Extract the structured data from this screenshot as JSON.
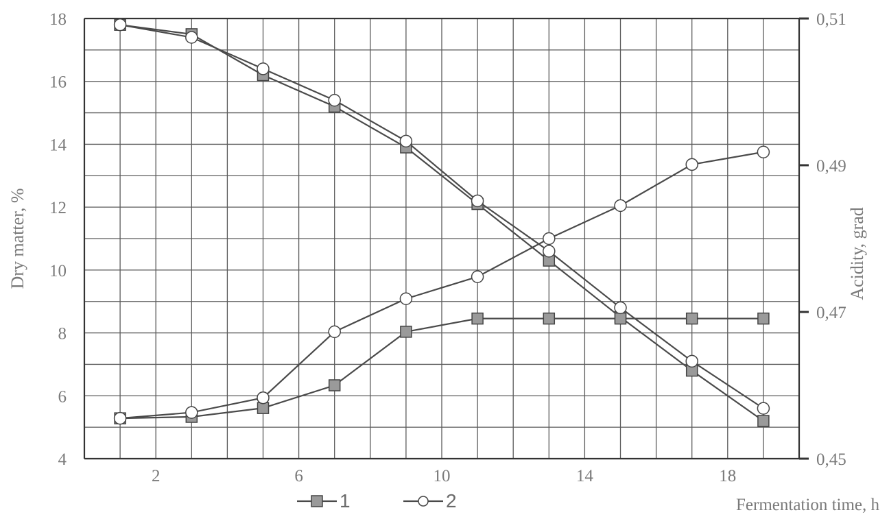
{
  "colors": {
    "line": "#4a4a4a",
    "grid": "#5a5a5a",
    "square_fill": "#9a9a9a",
    "circle_fill": "#ffffff",
    "text": "#7a7a7a"
  },
  "chart_data": {
    "type": "line",
    "title": "",
    "xlabel": "Fermentation time, h",
    "ylabel_left": "Dry matter, %",
    "ylabel_right": "Acidity, grad",
    "xlim": [
      0,
      20
    ],
    "ylim_left": [
      4,
      18
    ],
    "ylim_right": [
      0.45,
      0.51
    ],
    "x_ticks": [
      2,
      6,
      10,
      14,
      18
    ],
    "y_ticks_left": [
      4,
      6,
      8,
      10,
      12,
      14,
      16,
      18
    ],
    "y_ticks_right": [
      "0,45",
      "0,47",
      "0,49",
      "0,51"
    ],
    "grid": true,
    "legend_position": "bottom-center",
    "x": [
      1,
      3,
      5,
      7,
      9,
      11,
      13,
      15,
      17,
      19
    ],
    "series": [
      {
        "name": "1",
        "marker": "square",
        "dry_matter": [
          17.8,
          17.5,
          16.2,
          15.2,
          13.9,
          12.1,
          10.3,
          8.5,
          6.8,
          5.2
        ],
        "acidity": [
          0.4555,
          0.4557,
          0.4569,
          0.46,
          0.4673,
          0.4691,
          0.4691,
          0.4691,
          0.4691,
          0.4691
        ]
      },
      {
        "name": "2",
        "marker": "circle",
        "dry_matter": [
          17.8,
          17.4,
          16.4,
          15.4,
          14.1,
          12.2,
          10.6,
          8.8,
          7.1,
          5.6
        ],
        "acidity": [
          0.4555,
          0.4563,
          0.4583,
          0.4673,
          0.4718,
          0.4748,
          0.48,
          0.4845,
          0.4901,
          0.4918
        ]
      }
    ]
  }
}
